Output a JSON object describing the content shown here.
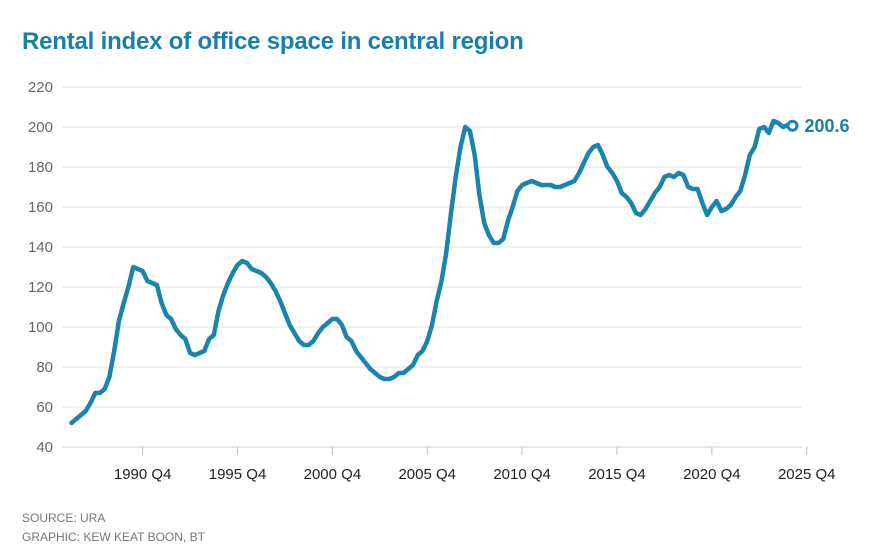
{
  "title": "Rental index of office space in central region",
  "footer": {
    "source": "SOURCE: URA",
    "graphic": "GRAPHIC: KEW KEAT BOON, BT"
  },
  "colors": {
    "line": "#1a84ad",
    "title": "#1a7fa8",
    "grid": "#e2e2e2"
  },
  "chart_data": {
    "type": "line",
    "title": "Rental index of office space in central region",
    "xlabel": "",
    "ylabel": "",
    "ylim": [
      40,
      220
    ],
    "y_ticks": [
      "40",
      "60",
      "80",
      "100",
      "120",
      "140",
      "160",
      "180",
      "200",
      "220"
    ],
    "x_ticks": [
      "1990 Q4",
      "1995 Q4",
      "2000 Q4",
      "2005 Q4",
      "2010 Q4",
      "2015 Q4",
      "2020 Q4",
      "2025 Q4"
    ],
    "grid": true,
    "last_value_label": "200.6",
    "series": [
      {
        "values": [
          {
            "x": 1987.0,
            "y": 52
          },
          {
            "x": 1987.25,
            "y": 54
          },
          {
            "x": 1987.5,
            "y": 56
          },
          {
            "x": 1987.75,
            "y": 58
          },
          {
            "x": 1988.0,
            "y": 62
          },
          {
            "x": 1988.25,
            "y": 67
          },
          {
            "x": 1988.5,
            "y": 67
          },
          {
            "x": 1988.75,
            "y": 69
          },
          {
            "x": 1989.0,
            "y": 75
          },
          {
            "x": 1989.25,
            "y": 88
          },
          {
            "x": 1989.5,
            "y": 103
          },
          {
            "x": 1989.75,
            "y": 112
          },
          {
            "x": 1990.0,
            "y": 120
          },
          {
            "x": 1990.25,
            "y": 130
          },
          {
            "x": 1990.5,
            "y": 129
          },
          {
            "x": 1990.75,
            "y": 128
          },
          {
            "x": 1991.0,
            "y": 123
          },
          {
            "x": 1991.25,
            "y": 122
          },
          {
            "x": 1991.5,
            "y": 121
          },
          {
            "x": 1991.75,
            "y": 112
          },
          {
            "x": 1992.0,
            "y": 106
          },
          {
            "x": 1992.25,
            "y": 104
          },
          {
            "x": 1992.5,
            "y": 99
          },
          {
            "x": 1992.75,
            "y": 96
          },
          {
            "x": 1993.0,
            "y": 94
          },
          {
            "x": 1993.25,
            "y": 87
          },
          {
            "x": 1993.5,
            "y": 86
          },
          {
            "x": 1993.75,
            "y": 87
          },
          {
            "x": 1994.0,
            "y": 88
          },
          {
            "x": 1994.25,
            "y": 94
          },
          {
            "x": 1994.5,
            "y": 96
          },
          {
            "x": 1994.75,
            "y": 108
          },
          {
            "x": 1995.0,
            "y": 116
          },
          {
            "x": 1995.25,
            "y": 122
          },
          {
            "x": 1995.5,
            "y": 127
          },
          {
            "x": 1995.75,
            "y": 131
          },
          {
            "x": 1996.0,
            "y": 133
          },
          {
            "x": 1996.25,
            "y": 132
          },
          {
            "x": 1996.5,
            "y": 129
          },
          {
            "x": 1996.75,
            "y": 128
          },
          {
            "x": 1997.0,
            "y": 127
          },
          {
            "x": 1997.25,
            "y": 125
          },
          {
            "x": 1997.5,
            "y": 122
          },
          {
            "x": 1997.75,
            "y": 118
          },
          {
            "x": 1998.0,
            "y": 113
          },
          {
            "x": 1998.25,
            "y": 107
          },
          {
            "x": 1998.5,
            "y": 101
          },
          {
            "x": 1998.75,
            "y": 97
          },
          {
            "x": 1999.0,
            "y": 93
          },
          {
            "x": 1999.25,
            "y": 91
          },
          {
            "x": 1999.5,
            "y": 91
          },
          {
            "x": 1999.75,
            "y": 93
          },
          {
            "x": 2000.0,
            "y": 97
          },
          {
            "x": 2000.25,
            "y": 100
          },
          {
            "x": 2000.5,
            "y": 102
          },
          {
            "x": 2000.75,
            "y": 104
          },
          {
            "x": 2001.0,
            "y": 104
          },
          {
            "x": 2001.25,
            "y": 101
          },
          {
            "x": 2001.5,
            "y": 95
          },
          {
            "x": 2001.75,
            "y": 93
          },
          {
            "x": 2002.0,
            "y": 88
          },
          {
            "x": 2002.25,
            "y": 85
          },
          {
            "x": 2002.5,
            "y": 82
          },
          {
            "x": 2002.75,
            "y": 79
          },
          {
            "x": 2003.0,
            "y": 77
          },
          {
            "x": 2003.25,
            "y": 75
          },
          {
            "x": 2003.5,
            "y": 74
          },
          {
            "x": 2003.75,
            "y": 74
          },
          {
            "x": 2004.0,
            "y": 75
          },
          {
            "x": 2004.25,
            "y": 77
          },
          {
            "x": 2004.5,
            "y": 77
          },
          {
            "x": 2004.75,
            "y": 79
          },
          {
            "x": 2005.0,
            "y": 81
          },
          {
            "x": 2005.25,
            "y": 86
          },
          {
            "x": 2005.5,
            "y": 88
          },
          {
            "x": 2005.75,
            "y": 93
          },
          {
            "x": 2006.0,
            "y": 101
          },
          {
            "x": 2006.25,
            "y": 113
          },
          {
            "x": 2006.5,
            "y": 123
          },
          {
            "x": 2006.75,
            "y": 137
          },
          {
            "x": 2007.0,
            "y": 157
          },
          {
            "x": 2007.25,
            "y": 175
          },
          {
            "x": 2007.5,
            "y": 190
          },
          {
            "x": 2007.75,
            "y": 200
          },
          {
            "x": 2008.0,
            "y": 198
          },
          {
            "x": 2008.25,
            "y": 186
          },
          {
            "x": 2008.5,
            "y": 166
          },
          {
            "x": 2008.75,
            "y": 152
          },
          {
            "x": 2009.0,
            "y": 146
          },
          {
            "x": 2009.25,
            "y": 142
          },
          {
            "x": 2009.5,
            "y": 142
          },
          {
            "x": 2009.75,
            "y": 144
          },
          {
            "x": 2010.0,
            "y": 153
          },
          {
            "x": 2010.25,
            "y": 160
          },
          {
            "x": 2010.5,
            "y": 168
          },
          {
            "x": 2010.75,
            "y": 171
          },
          {
            "x": 2011.0,
            "y": 172
          },
          {
            "x": 2011.25,
            "y": 173
          },
          {
            "x": 2011.5,
            "y": 172
          },
          {
            "x": 2011.75,
            "y": 171
          },
          {
            "x": 2012.0,
            "y": 171
          },
          {
            "x": 2012.25,
            "y": 171
          },
          {
            "x": 2012.5,
            "y": 170
          },
          {
            "x": 2012.75,
            "y": 170
          },
          {
            "x": 2013.0,
            "y": 171
          },
          {
            "x": 2013.25,
            "y": 172
          },
          {
            "x": 2013.5,
            "y": 173
          },
          {
            "x": 2013.75,
            "y": 177
          },
          {
            "x": 2014.0,
            "y": 182
          },
          {
            "x": 2014.25,
            "y": 187
          },
          {
            "x": 2014.5,
            "y": 190
          },
          {
            "x": 2014.75,
            "y": 191
          },
          {
            "x": 2015.0,
            "y": 186
          },
          {
            "x": 2015.25,
            "y": 180
          },
          {
            "x": 2015.5,
            "y": 177
          },
          {
            "x": 2015.75,
            "y": 173
          },
          {
            "x": 2016.0,
            "y": 167
          },
          {
            "x": 2016.25,
            "y": 165
          },
          {
            "x": 2016.5,
            "y": 162
          },
          {
            "x": 2016.75,
            "y": 157
          },
          {
            "x": 2017.0,
            "y": 156
          },
          {
            "x": 2017.25,
            "y": 159
          },
          {
            "x": 2017.5,
            "y": 163
          },
          {
            "x": 2017.75,
            "y": 167
          },
          {
            "x": 2018.0,
            "y": 170
          },
          {
            "x": 2018.25,
            "y": 175
          },
          {
            "x": 2018.5,
            "y": 176
          },
          {
            "x": 2018.75,
            "y": 175
          },
          {
            "x": 2019.0,
            "y": 177
          },
          {
            "x": 2019.25,
            "y": 176
          },
          {
            "x": 2019.5,
            "y": 170
          },
          {
            "x": 2019.75,
            "y": 169
          },
          {
            "x": 2020.0,
            "y": 169
          },
          {
            "x": 2020.25,
            "y": 162
          },
          {
            "x": 2020.5,
            "y": 156
          },
          {
            "x": 2020.75,
            "y": 160
          },
          {
            "x": 2021.0,
            "y": 163
          },
          {
            "x": 2021.25,
            "y": 158
          },
          {
            "x": 2021.5,
            "y": 159
          },
          {
            "x": 2021.75,
            "y": 161
          },
          {
            "x": 2022.0,
            "y": 165
          },
          {
            "x": 2022.25,
            "y": 168
          },
          {
            "x": 2022.5,
            "y": 176
          },
          {
            "x": 2022.75,
            "y": 186
          },
          {
            "x": 2023.0,
            "y": 190
          },
          {
            "x": 2023.25,
            "y": 199
          },
          {
            "x": 2023.5,
            "y": 200
          },
          {
            "x": 2023.75,
            "y": 197
          },
          {
            "x": 2024.0,
            "y": 203
          },
          {
            "x": 2024.25,
            "y": 202
          },
          {
            "x": 2024.5,
            "y": 200
          },
          {
            "x": 2024.75,
            "y": 201
          },
          {
            "x": 2025.0,
            "y": 200.6
          }
        ]
      }
    ]
  }
}
